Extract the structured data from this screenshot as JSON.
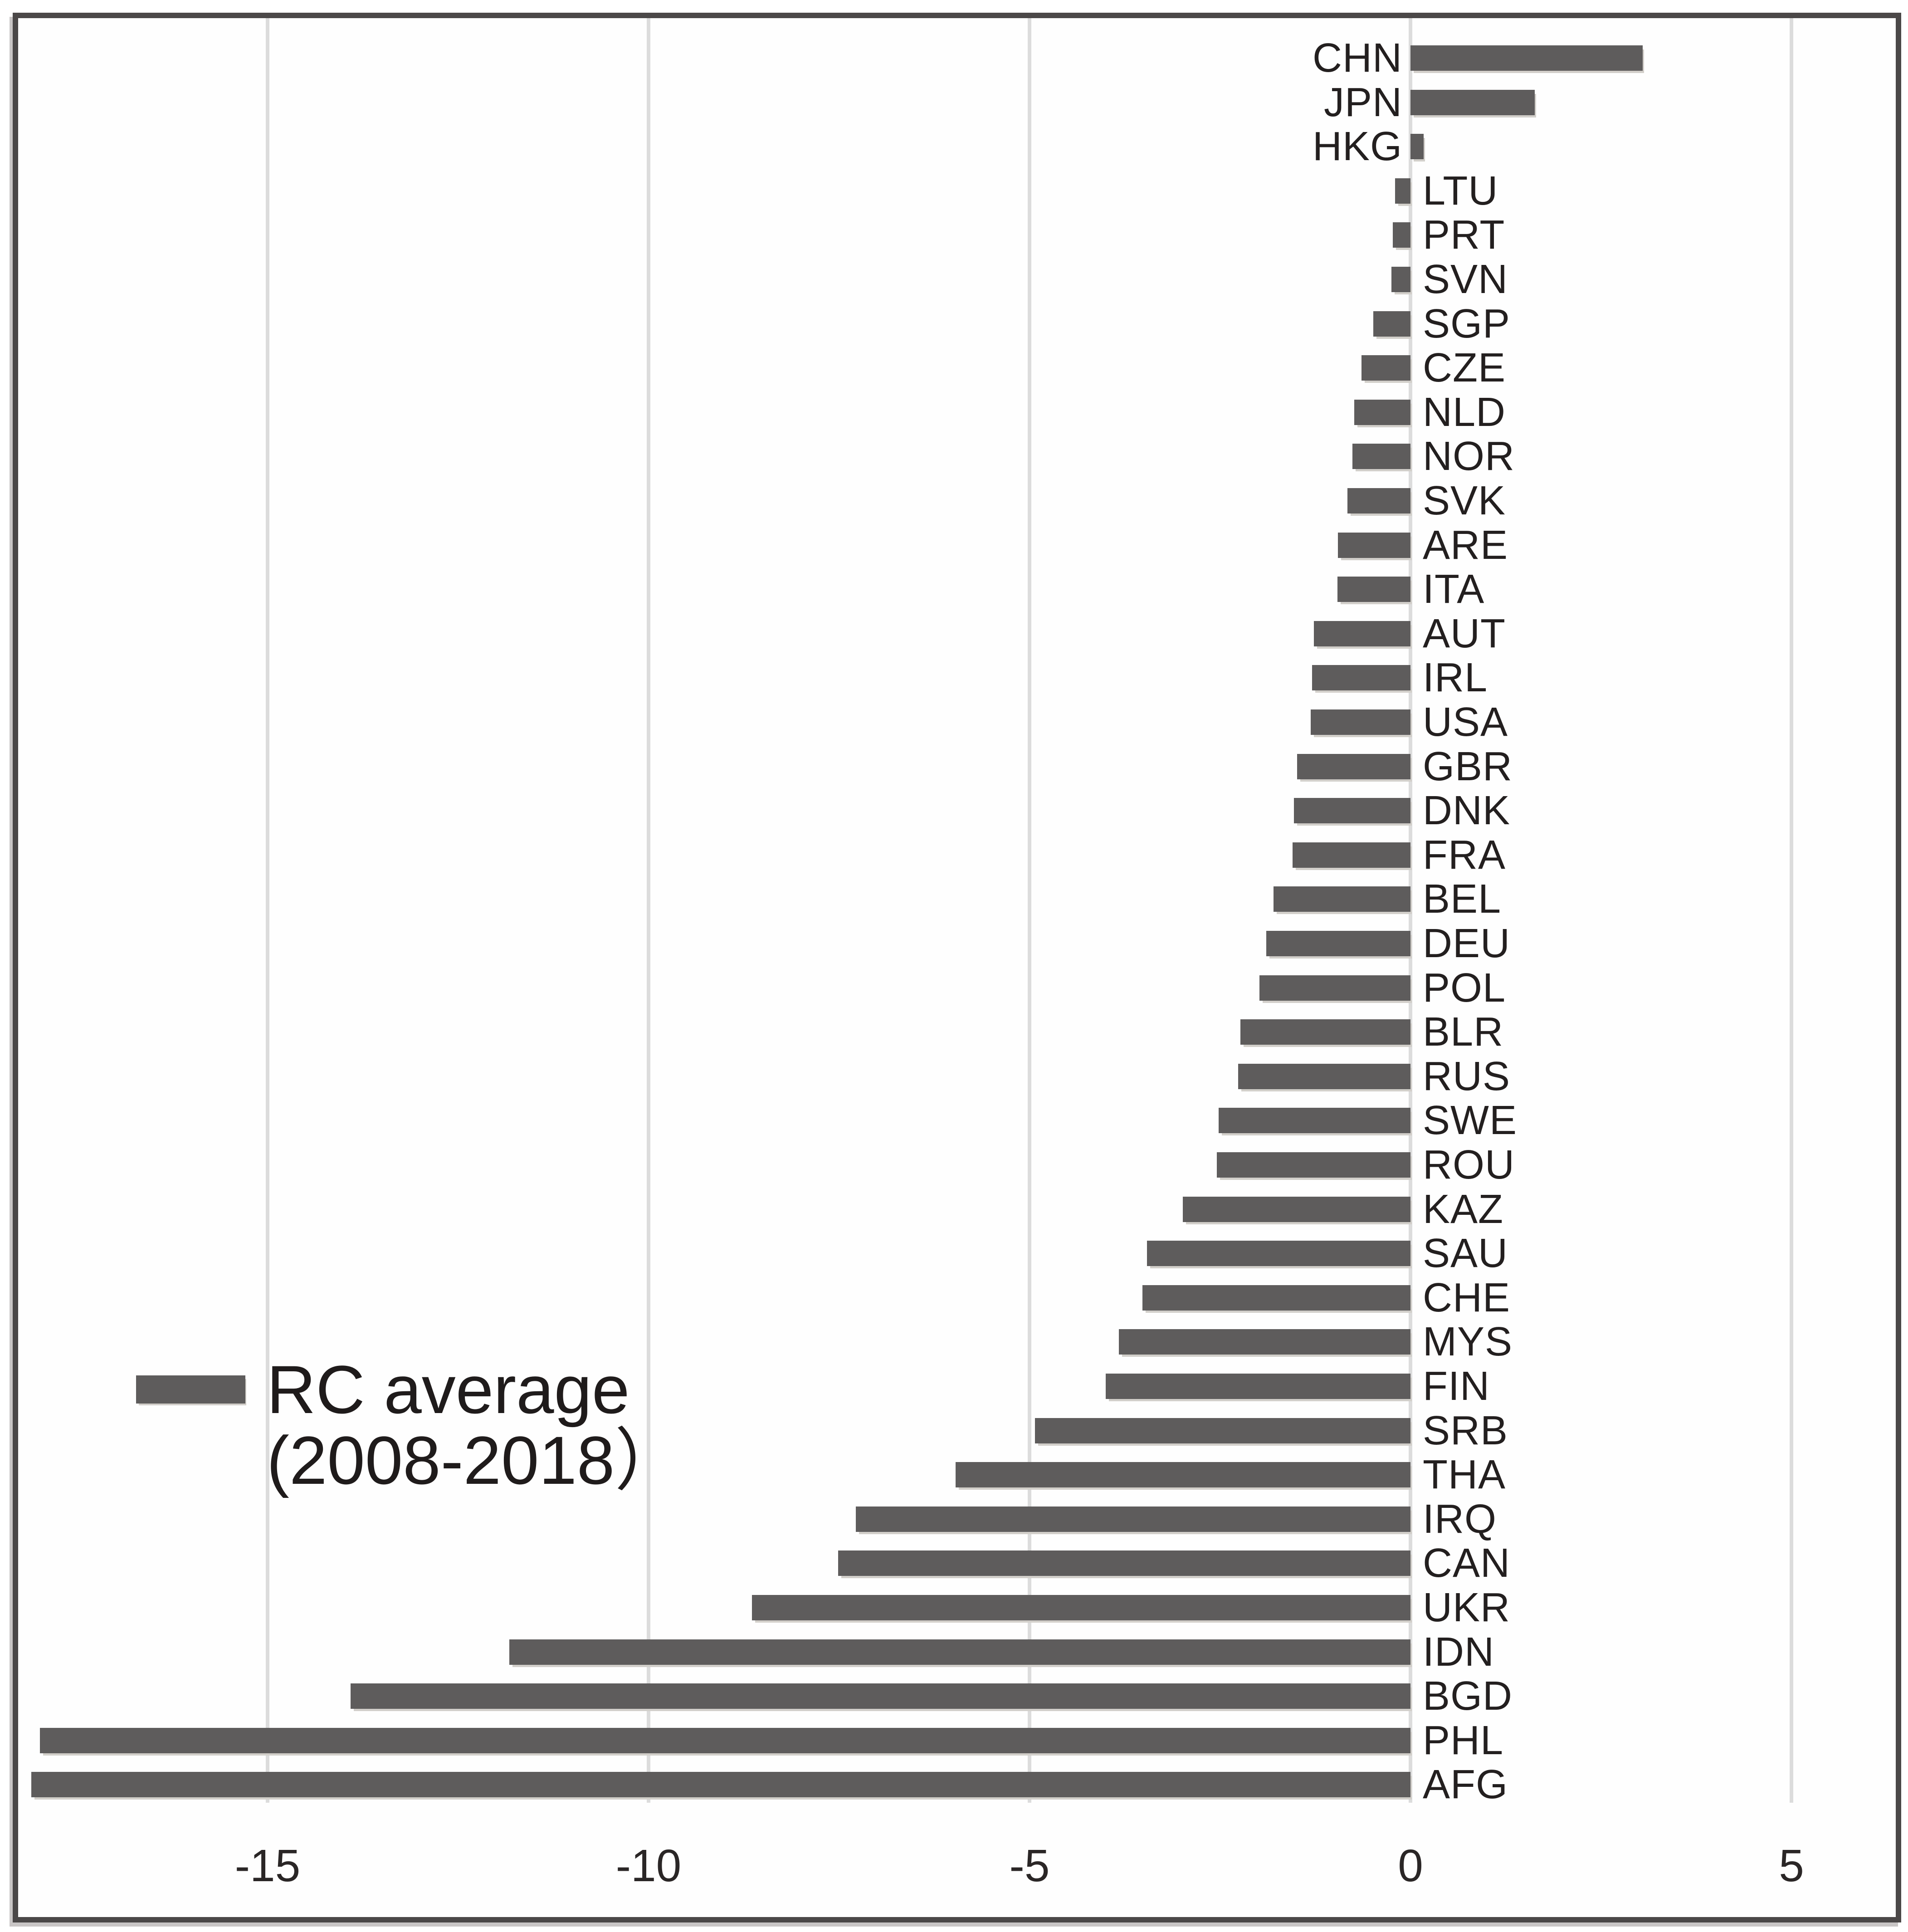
{
  "figure": {
    "background": "#ffffff",
    "frame_border_color": "#4b4848",
    "frame_shadow_color": "#c9c6c6"
  },
  "legend": {
    "line1": "RC average",
    "line2": "(2008-2018）"
  },
  "x_axis": {
    "tick_values": [
      -15,
      -10,
      -5,
      0,
      5
    ],
    "tick_labels": [
      "-15",
      "-10",
      "-5",
      "0",
      "5"
    ]
  },
  "chart_data": {
    "type": "bar",
    "orientation": "horizontal",
    "title": "",
    "xlabel": "",
    "ylabel": "",
    "series_name": "RC average (2008-2018)",
    "xlim": [
      -18.3,
      6.4
    ],
    "grid": "vertical",
    "legend_position": "middle-left",
    "bar_color": "#5e5c5c",
    "gridline_color": "#dcdcdc",
    "label_color": "#231f1f",
    "categories": [
      "CHN",
      "JPN",
      "HKG",
      "LTU",
      "PRT",
      "SVN",
      "SGP",
      "CZE",
      "NLD",
      "NOR",
      "SVK",
      "ARE",
      "ITA",
      "AUT",
      "IRL",
      "USA",
      "GBR",
      "DNK",
      "FRA",
      "BEL",
      "DEU",
      "POL",
      "BLR",
      "RUS",
      "SWE",
      "ROU",
      "KAZ",
      "SAU",
      "CHE",
      "MYS",
      "FIN",
      "SRB",
      "THA",
      "IRQ",
      "CAN",
      "UKR",
      "IDN",
      "BGD",
      "PHL",
      "AFG"
    ],
    "values": [
      3.05,
      1.63,
      0.17,
      -0.2,
      -0.23,
      -0.25,
      -0.49,
      -0.64,
      -0.74,
      -0.76,
      -0.83,
      -0.95,
      -0.96,
      -1.27,
      -1.29,
      -1.31,
      -1.49,
      -1.53,
      -1.55,
      -1.8,
      -1.89,
      -1.98,
      -2.23,
      -2.26,
      -2.52,
      -2.54,
      -2.99,
      -3.46,
      -3.52,
      -3.83,
      -4.0,
      -4.93,
      -5.97,
      -7.28,
      -7.51,
      -8.64,
      -11.83,
      -13.91,
      -17.99,
      -18.1
    ]
  }
}
